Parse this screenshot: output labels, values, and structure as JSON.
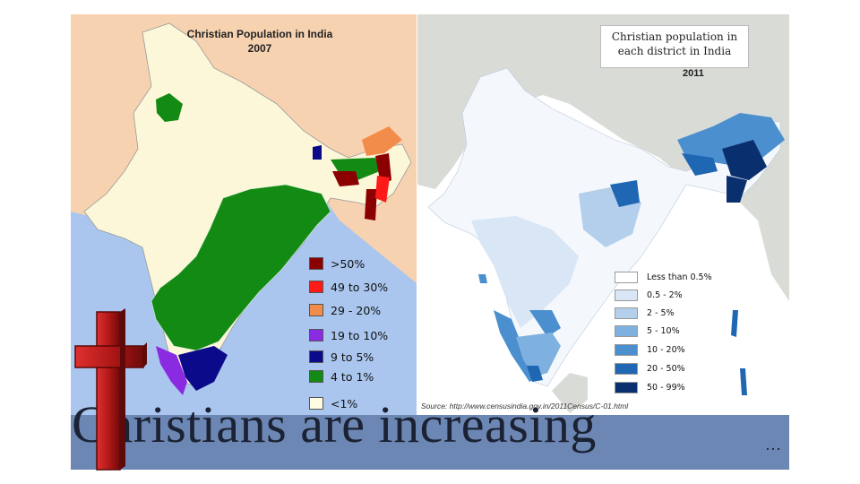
{
  "left_map": {
    "title_line1": "Christian Population in India",
    "title_line2": "2007",
    "legend": [
      {
        "label": ">50%",
        "color": "#8b0000"
      },
      {
        "label": "49 to 30%",
        "color": "#ff1a1a"
      },
      {
        "label": "29 - 20%",
        "color": "#f28c4a"
      },
      {
        "label": "19 to 10%",
        "color": "#8a2be2"
      },
      {
        "label": "9 to 5%",
        "color": "#0a0a8a"
      },
      {
        "label": "4 to 1%",
        "color": "#138a13"
      },
      {
        "label": "<1%",
        "color": "#fffbe0"
      }
    ],
    "colors": {
      "sea": "#aac6ee",
      "land_outside": "#f7d2b0",
      "india_base": "#fcf7d9"
    }
  },
  "right_map": {
    "title_line1": "Christian population in",
    "title_line2": "each district in India",
    "year": "2011",
    "legend": [
      {
        "label": "Less than 0.5%",
        "color": "#ffffff"
      },
      {
        "label": "0.5 - 2%",
        "color": "#d8e6f5"
      },
      {
        "label": "2 - 5%",
        "color": "#b3cfeb"
      },
      {
        "label": "5 - 10%",
        "color": "#7eb1df"
      },
      {
        "label": "10 - 20%",
        "color": "#4b8fcf"
      },
      {
        "label": "20 - 50%",
        "color": "#1f66b3"
      },
      {
        "label": "50 - 99%",
        "color": "#0a2f6e"
      }
    ],
    "source": "Source: http://www.censusindia.gov.in/2011Census/C-01.html",
    "colors": {
      "sea": "#ffffff",
      "land_outside": "#d9dbd6"
    }
  },
  "banner": {
    "text": "Christians are increasing",
    "ellipsis": "…",
    "color": "#6d87b5"
  },
  "cross": {
    "color": "#b01818"
  }
}
